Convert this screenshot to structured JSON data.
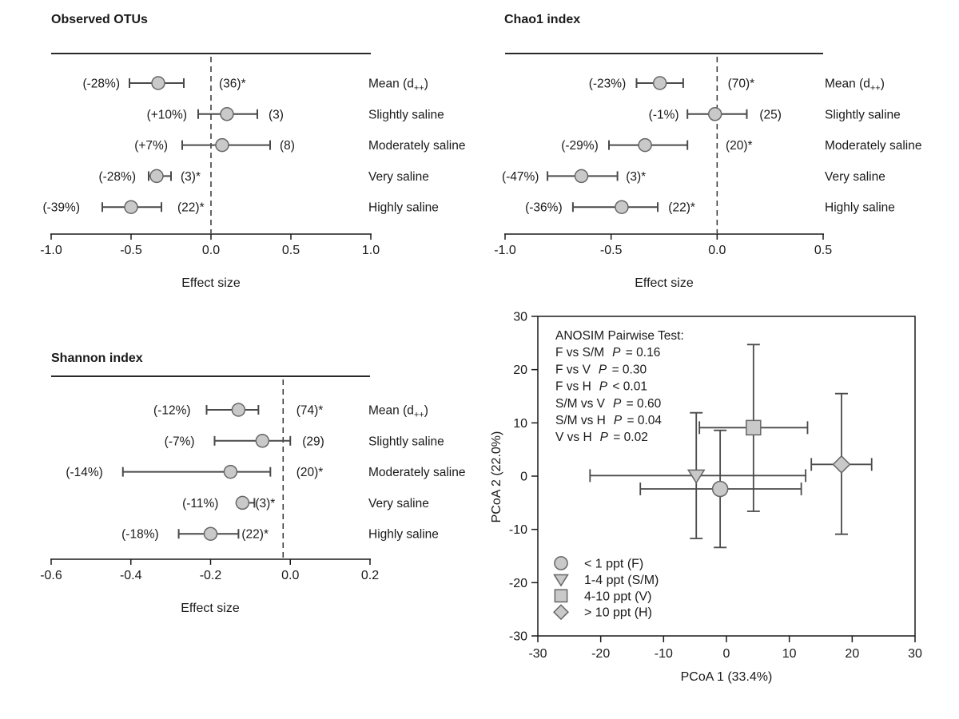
{
  "colors": {
    "background": "#ffffff",
    "text": "#1a1a1a",
    "axis": "#1a1a1a",
    "rule": "#2a2a2a",
    "error_bar": "#4a4a4a",
    "dashed_line": "#333333",
    "marker_fill": "#c9c9c9",
    "marker_stroke": "#666666"
  },
  "chart_data": [
    {
      "id": "observed-otus",
      "type": "forest",
      "title": "Observed OTUs",
      "xlabel": "Effect size",
      "xlim": [
        -1.0,
        1.0
      ],
      "xticks": [
        -1.0,
        -0.5,
        0.0,
        0.5,
        1.0
      ],
      "xtick_labels": [
        "-1.0",
        "-0.5",
        "0.0",
        "0.5",
        "1.0"
      ],
      "ref_line_x": 0.0,
      "rows": [
        {
          "category": {
            "prefix": "Mean (d",
            "sub": "++",
            "suffix": ")"
          },
          "value": -0.33,
          "ci": [
            -0.51,
            -0.17
          ],
          "pct_label": "(-28%)",
          "pct_label_x": -0.57,
          "n_label": "(36)*",
          "n_label_x": 0.05
        },
        {
          "category": "Slightly saline",
          "value": 0.1,
          "ci": [
            -0.08,
            0.29
          ],
          "pct_label": "(+10%)",
          "pct_label_x": -0.15,
          "n_label": "(3)",
          "n_label_x": 0.36
        },
        {
          "category": "Moderately saline",
          "value": 0.07,
          "ci": [
            -0.18,
            0.37
          ],
          "pct_label": "(+7%)",
          "pct_label_x": -0.27,
          "n_label": "(8)",
          "n_label_x": 0.43
        },
        {
          "category": "Very saline",
          "value": -0.34,
          "ci": [
            -0.39,
            -0.25
          ],
          "pct_label": "(-28%)",
          "pct_label_x": -0.47,
          "n_label": "(3)*",
          "n_label_x": -0.19
        },
        {
          "category": "Highly saline",
          "value": -0.5,
          "ci": [
            -0.68,
            -0.31
          ],
          "pct_label": "(-39%)",
          "pct_label_x": -0.82,
          "n_label": "(22)*",
          "n_label_x": -0.21
        }
      ]
    },
    {
      "id": "chao1-index",
      "type": "forest",
      "title": "Chao1 index",
      "xlabel": "Effect size",
      "xlim": [
        -1.0,
        0.5
      ],
      "xticks": [
        -1.0,
        -0.5,
        0.0,
        0.5
      ],
      "xtick_labels": [
        "-1.0",
        "-0.5",
        "0.0",
        "0.5"
      ],
      "ref_line_x": 0.0,
      "rows": [
        {
          "category": {
            "prefix": "Mean (d",
            "sub": "++",
            "suffix": ")"
          },
          "value": -0.27,
          "ci": [
            -0.38,
            -0.16
          ],
          "pct_label": "(-23%)",
          "pct_label_x": -0.43,
          "n_label": "(70)*",
          "n_label_x": 0.05
        },
        {
          "category": "Slightly saline",
          "value": -0.01,
          "ci": [
            -0.14,
            0.14
          ],
          "pct_label": "(-1%)",
          "pct_label_x": -0.18,
          "n_label": "(25)",
          "n_label_x": 0.2
        },
        {
          "category": "Moderately saline",
          "value": -0.34,
          "ci": [
            -0.51,
            -0.14
          ],
          "pct_label": "(-29%)",
          "pct_label_x": -0.56,
          "n_label": "(20)*",
          "n_label_x": 0.04
        },
        {
          "category": "Very saline",
          "value": -0.64,
          "ci": [
            -0.8,
            -0.47
          ],
          "pct_label": "(-47%)",
          "pct_label_x": -0.84,
          "n_label": "(3)*",
          "n_label_x": -0.43
        },
        {
          "category": "Highly saline",
          "value": -0.45,
          "ci": [
            -0.68,
            -0.28
          ],
          "pct_label": "(-36%)",
          "pct_label_x": -0.73,
          "n_label": "(22)*",
          "n_label_x": -0.23
        }
      ]
    },
    {
      "id": "shannon-index",
      "type": "forest",
      "title": "Shannon index",
      "xlabel": "Effect size",
      "xlim": [
        -0.6,
        0.2
      ],
      "xticks": [
        -0.6,
        -0.4,
        -0.2,
        0.0,
        0.2
      ],
      "xtick_labels": [
        "-0.6",
        "-0.4",
        "-0.2",
        "0.0",
        "0.2"
      ],
      "ref_line_x": -0.018,
      "rows": [
        {
          "category": {
            "prefix": "Mean (d",
            "sub": "++",
            "suffix": ")"
          },
          "value": -0.13,
          "ci": [
            -0.21,
            -0.08
          ],
          "pct_label": "(-12%)",
          "pct_label_x": -0.25,
          "n_label": "(74)*",
          "n_label_x": 0.015
        },
        {
          "category": "Slightly saline",
          "value": -0.07,
          "ci": [
            -0.19,
            0.0
          ],
          "pct_label": "(-7%)",
          "pct_label_x": -0.24,
          "n_label": "(29)",
          "n_label_x": 0.03
        },
        {
          "category": "Moderately saline",
          "value": -0.15,
          "ci": [
            -0.42,
            -0.05
          ],
          "pct_label": "(-14%)",
          "pct_label_x": -0.47,
          "n_label": "(20)*",
          "n_label_x": 0.015
        },
        {
          "category": "Very saline",
          "value": -0.12,
          "ci": [
            -0.13,
            -0.09
          ],
          "pct_label": "(-11%)",
          "pct_label_x": -0.18,
          "n_label": "(3)*",
          "n_label_x": -0.088
        },
        {
          "category": "Highly saline",
          "value": -0.2,
          "ci": [
            -0.28,
            -0.13
          ],
          "pct_label": "(-18%)",
          "pct_label_x": -0.33,
          "n_label": "(22)*",
          "n_label_x": -0.122
        }
      ]
    },
    {
      "id": "pcoa",
      "type": "scatter",
      "xlabel": "PCoA 1 (33.4%)",
      "ylabel": "PCoA 2 (22.0%)",
      "xlim": [
        -30,
        30
      ],
      "ylim": [
        -30,
        30
      ],
      "xticks": [
        -30,
        -20,
        -10,
        0,
        10,
        20,
        30
      ],
      "xtick_labels": [
        "-30",
        "-20",
        "-10",
        "0",
        "10",
        "20",
        "30"
      ],
      "yticks": [
        -30,
        -20,
        -10,
        0,
        10,
        20,
        30
      ],
      "ytick_labels": [
        "-30",
        "-20",
        "-10",
        "0",
        "10",
        "20",
        "30"
      ],
      "annotation": {
        "title": "ANOSIM Pairwise Test:",
        "tests": [
          {
            "pair": "F vs S/M",
            "p": "= 0.16"
          },
          {
            "pair": "F vs V",
            "p": "= 0.30"
          },
          {
            "pair": "F vs H",
            "p": "< 0.01"
          },
          {
            "pair": "S/M vs V",
            "p": "= 0.60"
          },
          {
            "pair": "S/M vs H",
            "p": "= 0.04"
          },
          {
            "pair": "V vs H",
            "p": "= 0.02"
          }
        ]
      },
      "series": [
        {
          "name": "< 1 ppt (F)",
          "marker": "circle",
          "x": -1.0,
          "y": -2.4,
          "x_err": [
            -13.7,
            11.9
          ],
          "y_err": [
            -13.4,
            8.6
          ]
        },
        {
          "name": "1-4 ppt (S/M)",
          "marker": "triangle-down",
          "x": -4.8,
          "y": 0.1,
          "x_err": [
            -21.7,
            12.6
          ],
          "y_err": [
            -11.7,
            11.9
          ]
        },
        {
          "name": "4-10 ppt (V)",
          "marker": "square",
          "x": 4.3,
          "y": 9.1,
          "x_err": [
            -4.3,
            12.9
          ],
          "y_err": [
            -6.6,
            24.7
          ]
        },
        {
          "name": "> 10 ppt (H)",
          "marker": "diamond",
          "x": 18.3,
          "y": 2.2,
          "x_err": [
            13.5,
            23.1
          ],
          "y_err": [
            -10.9,
            15.5
          ]
        }
      ],
      "legend_position": "bottom-left"
    }
  ]
}
